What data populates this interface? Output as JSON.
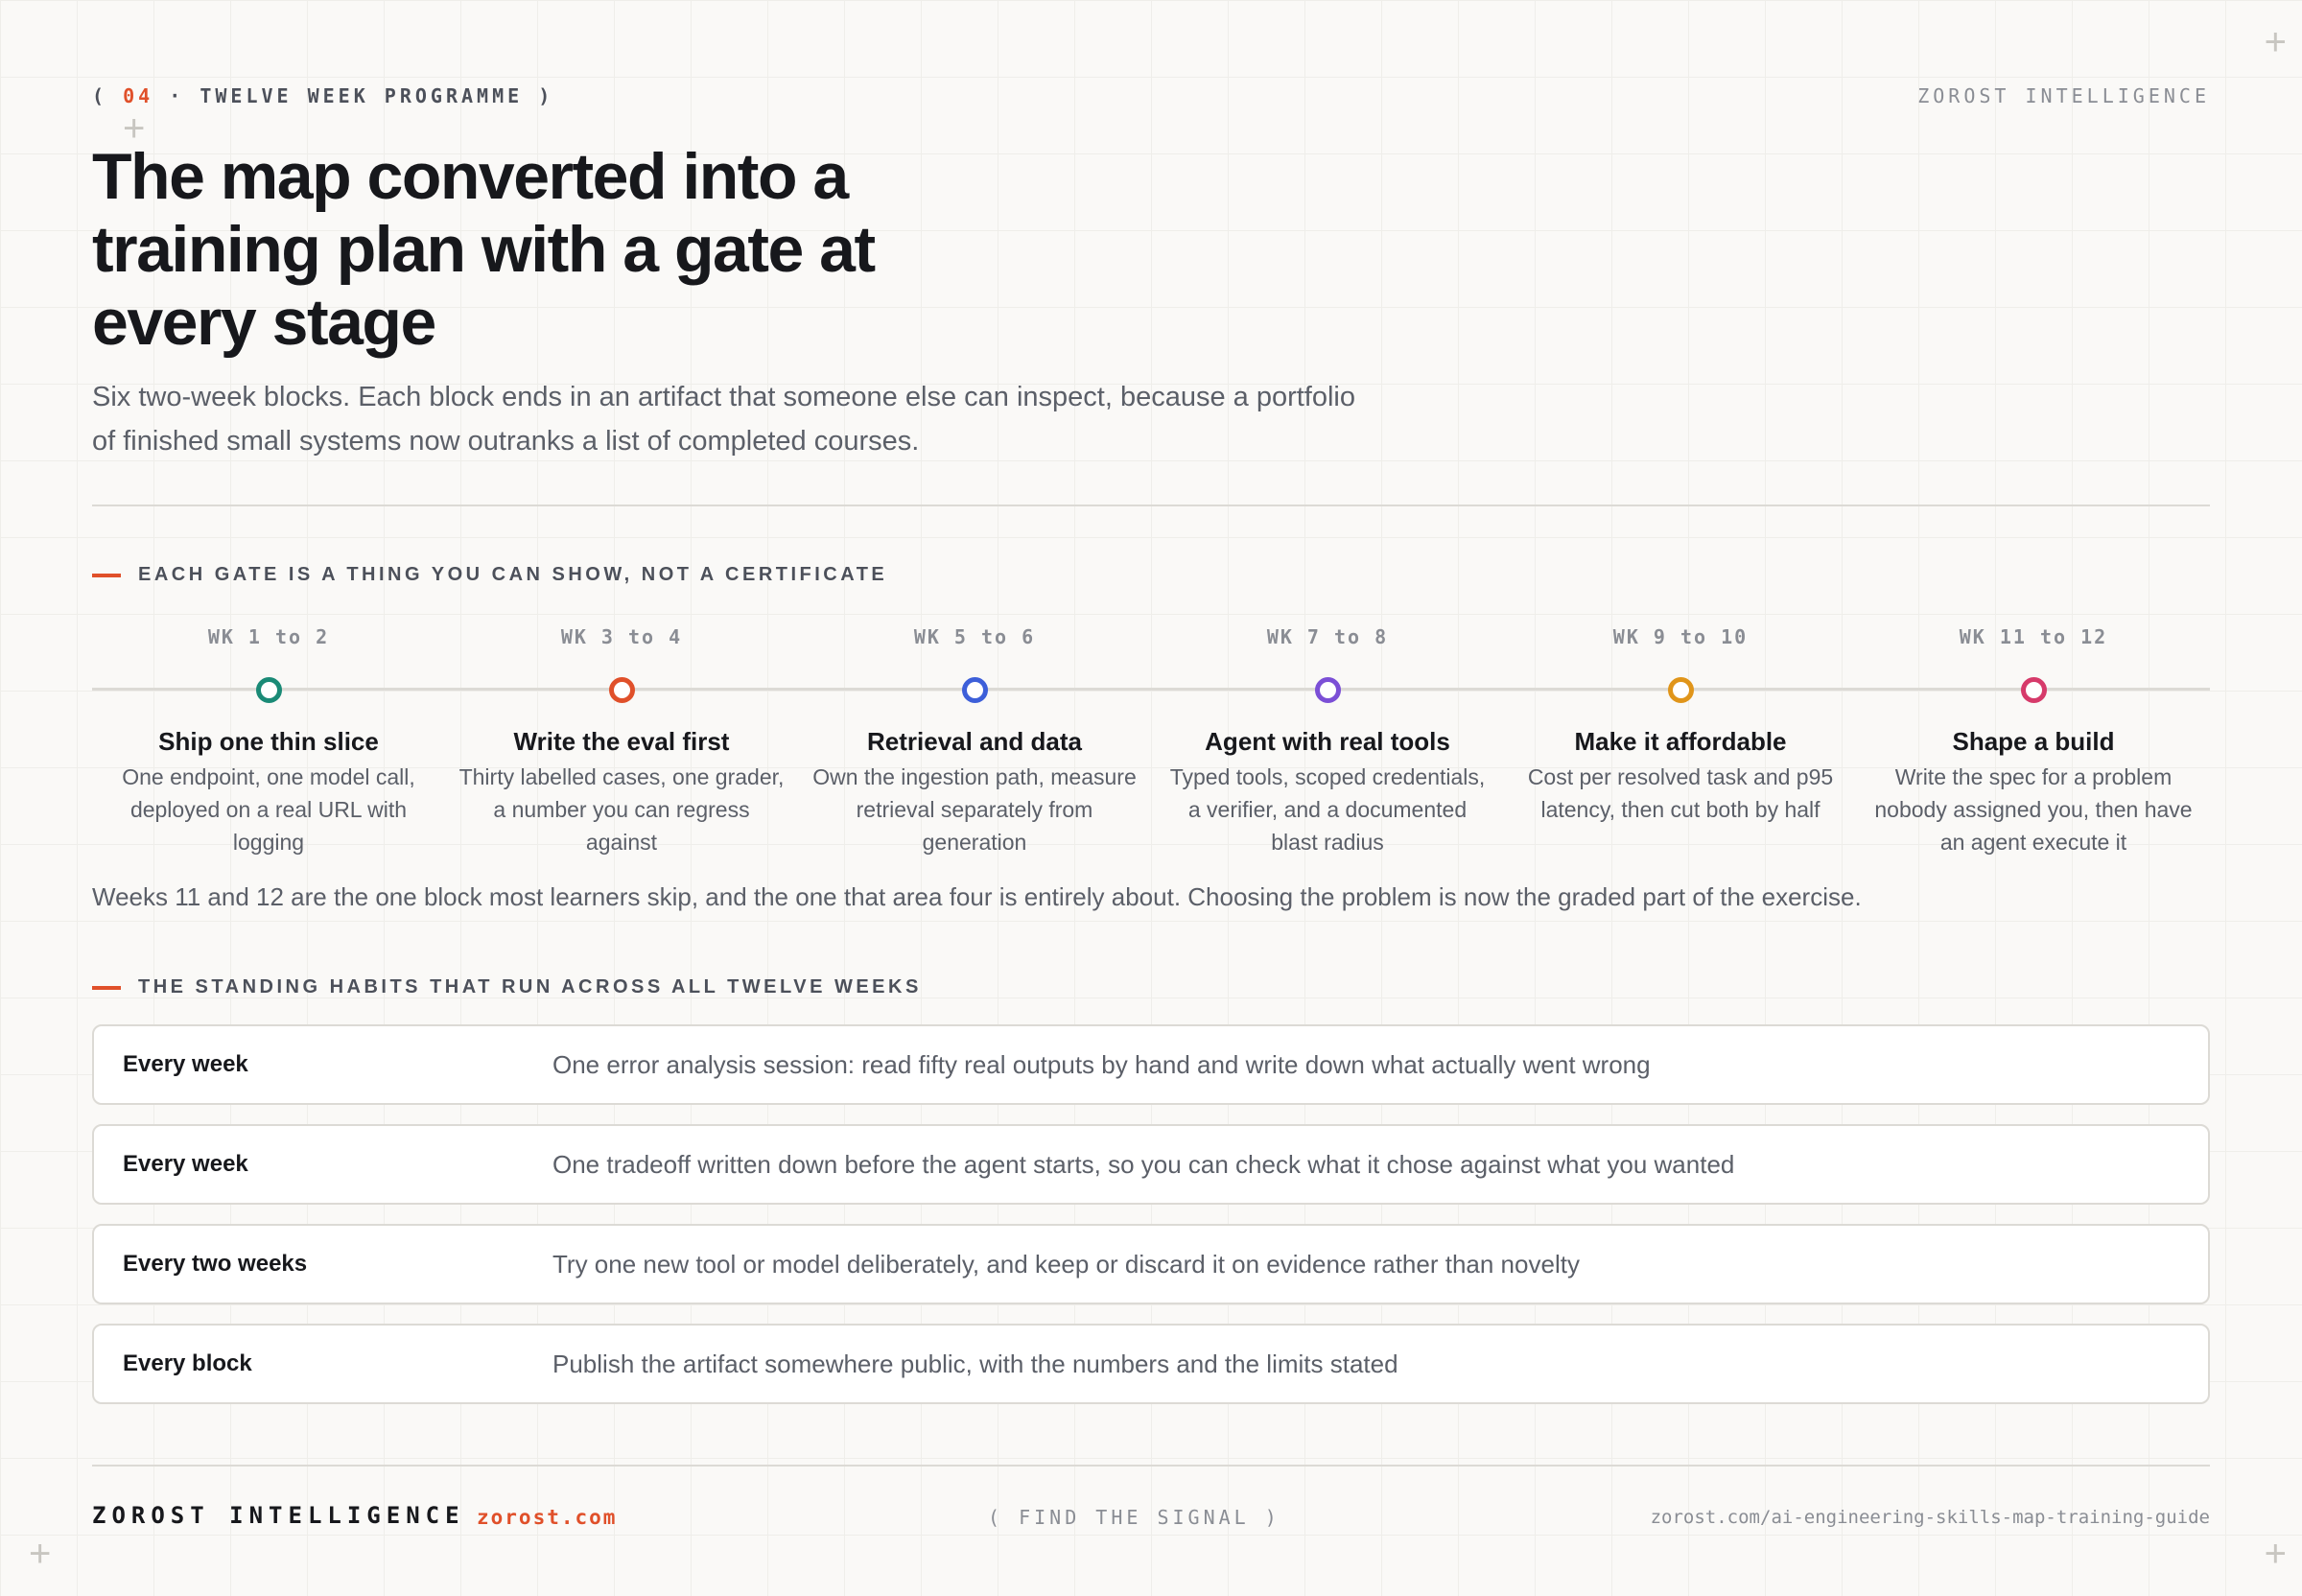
{
  "header": {
    "open": "(",
    "number": "04",
    "label": "· TWELVE WEEK PROGRAMME",
    "close": ")",
    "brand": "ZOROST INTELLIGENCE"
  },
  "title": "The map converted into a training plan with a gate at every stage",
  "subtitle": "Six two-week blocks. Each block ends in an artifact that someone else can inspect, because a portfolio of finished small systems now outranks a list of completed courses.",
  "timeline": {
    "heading": "EACH GATE IS A THING YOU CAN SHOW, NOT A CERTIFICATE",
    "stages": [
      {
        "weeks": "WK 1 to 2",
        "title": "Ship one thin slice",
        "text": "One endpoint, one model call, deployed on a real URL with logging",
        "color": "#1a8a76"
      },
      {
        "weeks": "WK 3 to 4",
        "title": "Write the eval first",
        "text": "Thirty labelled cases, one grader, a number you can regress against",
        "color": "#e0502a"
      },
      {
        "weeks": "WK 5 to 6",
        "title": "Retrieval and data",
        "text": "Own the ingestion path, measure retrieval separately from generation",
        "color": "#3d5fd9"
      },
      {
        "weeks": "WK 7 to 8",
        "title": "Agent with real tools",
        "text": "Typed tools, scoped credentials, a verifier, and a documented blast radius",
        "color": "#7b4fd6"
      },
      {
        "weeks": "WK 9 to 10",
        "title": "Make it affordable",
        "text": "Cost per resolved task and p95 latency, then cut both by half",
        "color": "#e0951a"
      },
      {
        "weeks": "WK 11 to 12",
        "title": "Shape a build",
        "text": "Write the spec for a problem nobody assigned you, then have an agent execute it",
        "color": "#d63a6a"
      }
    ],
    "note": "Weeks 11 and 12 are the one block most learners skip, and the one that area four is entirely about. Choosing the problem is now the graded part of the exercise."
  },
  "habits": {
    "heading": "THE STANDING HABITS THAT RUN ACROSS ALL TWELVE WEEKS",
    "rows": [
      {
        "when": "Every week",
        "what": "One error analysis session: read fifty real outputs by hand and write down what actually went wrong"
      },
      {
        "when": "Every week",
        "what": "One tradeoff written down before the agent starts, so you can check what it chose against what you wanted"
      },
      {
        "when": "Every two weeks",
        "what": "Try one new tool or model deliberately, and keep or discard it on evidence rather than novelty"
      },
      {
        "when": "Every block",
        "what": "Publish the artifact somewhere public, with the numbers and the limits stated"
      }
    ]
  },
  "footer": {
    "brand": "ZOROST INTELLIGENCE",
    "domain": "zorost.com",
    "tagline": "( FIND THE SIGNAL )",
    "url": "zorost.com/ai-engineering-skills-map-training-guide"
  }
}
